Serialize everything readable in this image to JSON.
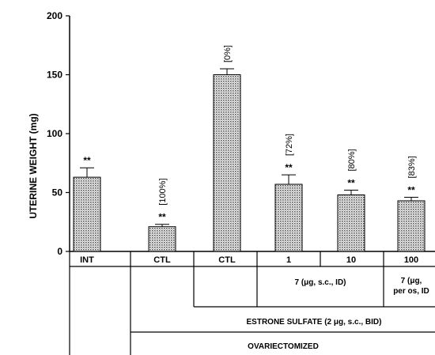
{
  "chart_data": {
    "type": "bar",
    "ylabel": "UTERINE WEIGHT (mg)",
    "ylim": [
      0,
      200
    ],
    "yticks": [
      0,
      50,
      100,
      150,
      200
    ],
    "grid": false,
    "categories": [
      "INT",
      "CTL",
      "CTL",
      "1",
      "10",
      "100"
    ],
    "values": [
      63,
      21,
      150,
      57,
      48,
      43
    ],
    "errors": [
      8,
      2,
      5,
      8,
      4,
      3
    ],
    "significance": [
      "**",
      "**",
      "",
      "**",
      "**",
      "**"
    ],
    "percent_labels": [
      "",
      "[100%]",
      "[0%]",
      "[72%]",
      "[80%]",
      "[83%]"
    ],
    "groups": [
      {
        "label": "7 (μg, s.c., ID)"
      },
      {
        "label": "7 (μg,\nper os, ID"
      },
      {
        "label": "ESTRONE SULFATE (2 μg, s.c., BID)"
      },
      {
        "label": "OVARIECTOMIZED"
      }
    ],
    "bar_pattern_color": "#7a7a7a"
  }
}
